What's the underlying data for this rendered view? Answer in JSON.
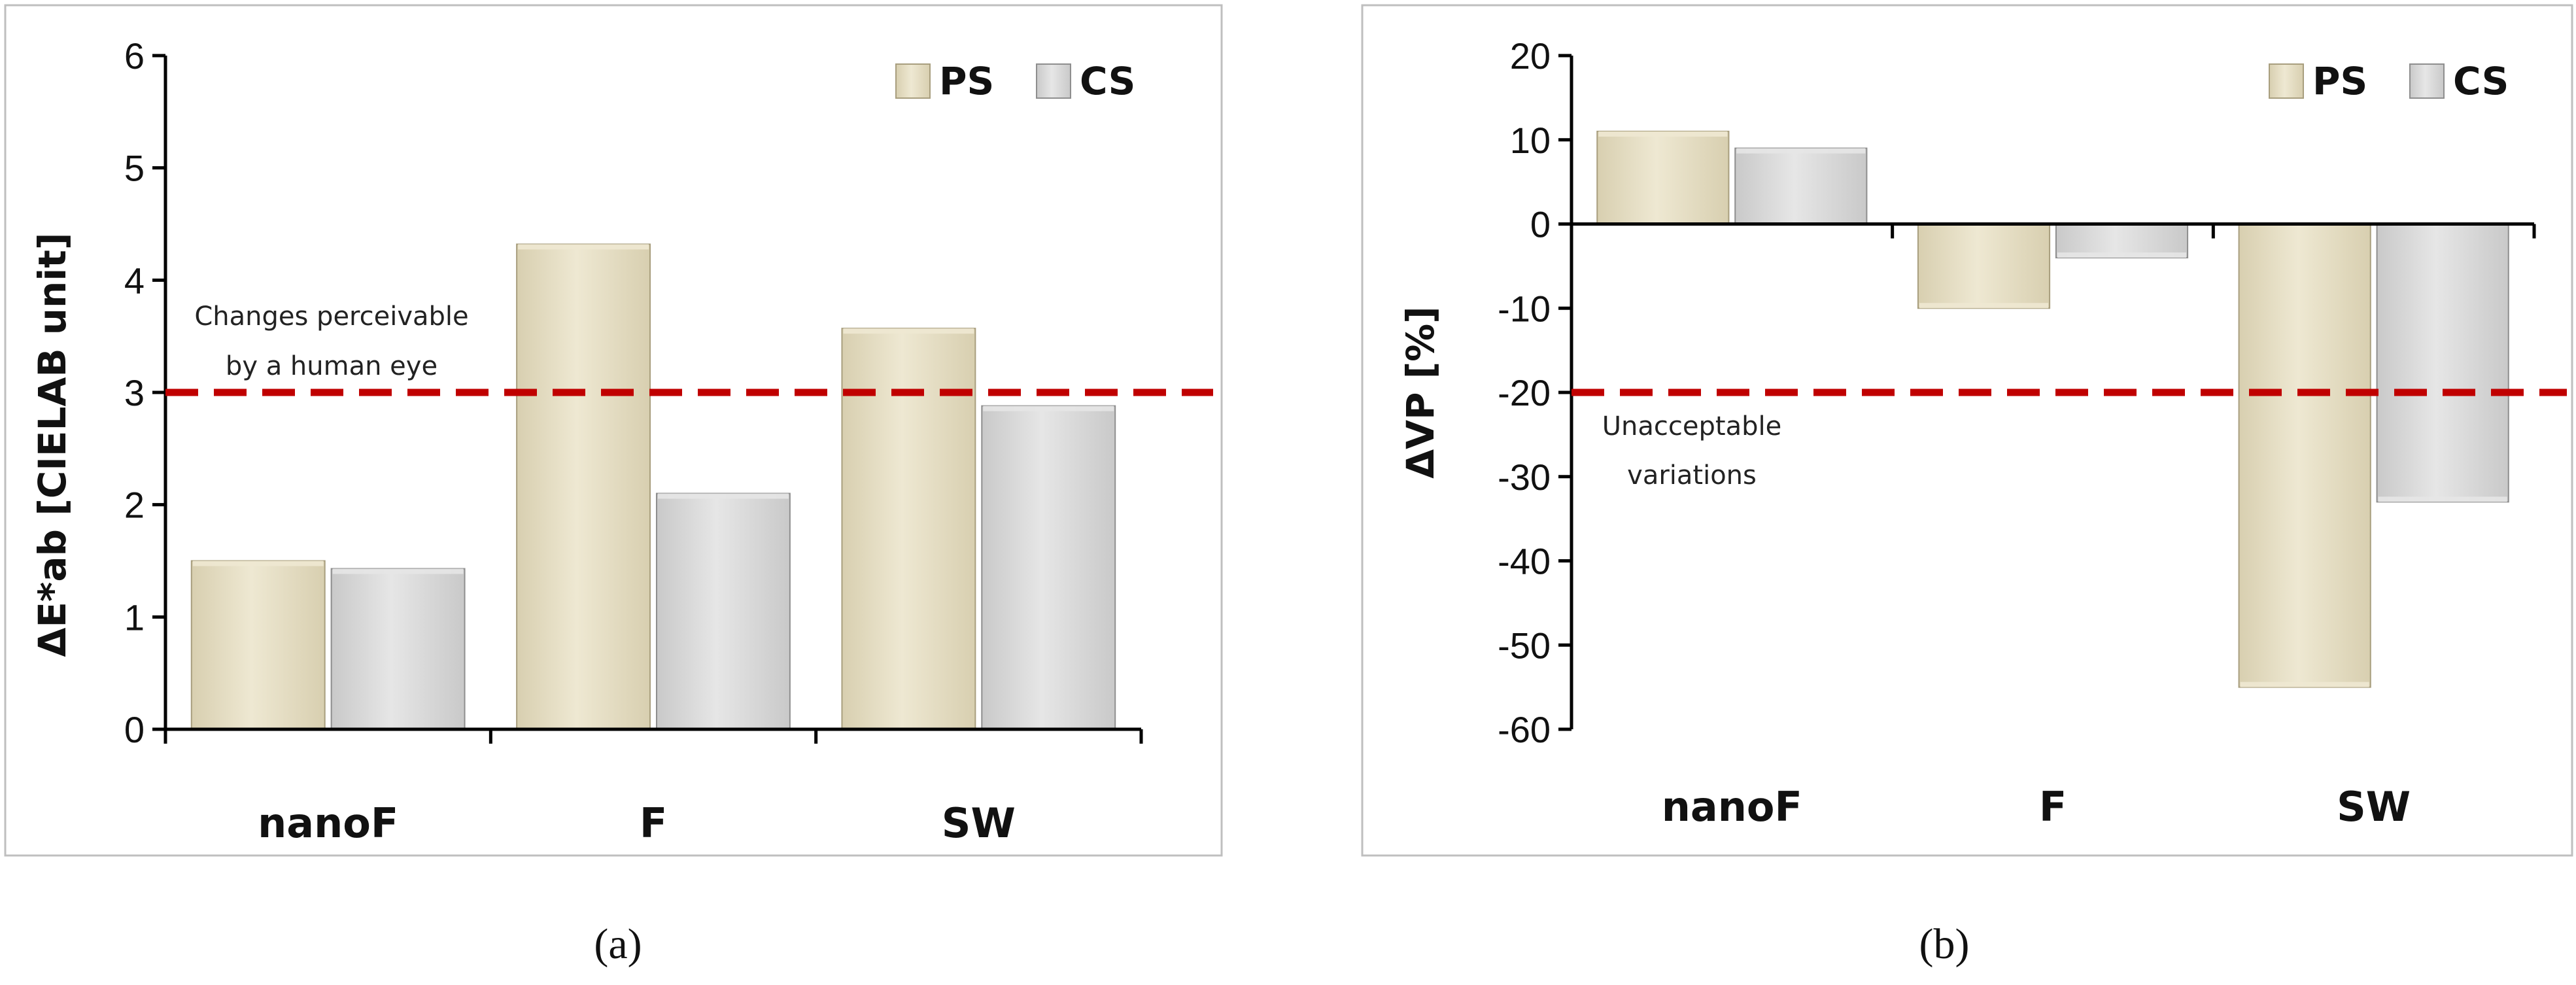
{
  "colors": {
    "ps": "#D8CFB0",
    "ps_light": "#EEE8D2",
    "cs": "#C9C9C9",
    "cs_light": "#E6E6E6",
    "threshold": "#C00000",
    "axis": "#000000",
    "frame": "#BFBFBF"
  },
  "chart_data": [
    {
      "type": "bar",
      "panel_label": "(a)",
      "categories": [
        "nanoF",
        "F",
        "SW"
      ],
      "series": [
        {
          "name": "PS",
          "values": [
            1.5,
            4.32,
            3.57
          ]
        },
        {
          "name": "CS",
          "values": [
            1.43,
            2.1,
            2.88
          ]
        }
      ],
      "ylabel": "ΔE*ab [CIELAB unit]",
      "xlabel": "",
      "ylim": [
        0,
        6
      ],
      "yticks": [
        0,
        1,
        2,
        3,
        4,
        5,
        6
      ],
      "ytick_labels": [
        "0",
        "1",
        "2",
        "3",
        "4",
        "5",
        "6"
      ],
      "legend": [
        "PS",
        "CS"
      ],
      "legend_position": "top-right",
      "grid": false,
      "threshold": {
        "value": 3,
        "label_lines": [
          "Changes perceivable",
          "by a human eye"
        ]
      }
    },
    {
      "type": "bar",
      "panel_label": "(b)",
      "categories": [
        "nanoF",
        "F",
        "SW"
      ],
      "series": [
        {
          "name": "PS",
          "values": [
            11,
            -10,
            -55
          ]
        },
        {
          "name": "CS",
          "values": [
            9,
            -4,
            -33
          ]
        }
      ],
      "ylabel": "ΔVP  [%]",
      "xlabel": "",
      "ylim": [
        -60,
        20
      ],
      "yticks": [
        -60,
        -50,
        -40,
        -30,
        -20,
        -10,
        0,
        10,
        20
      ],
      "ytick_labels": [
        "-60",
        "-50",
        "-40",
        "-30",
        "-20",
        "-10",
        "0",
        "10",
        "20"
      ],
      "legend": [
        "PS",
        "CS"
      ],
      "legend_position": "top-right",
      "grid": false,
      "threshold": {
        "value": -20,
        "label_lines": [
          "Unacceptable",
          "variations"
        ]
      }
    }
  ]
}
